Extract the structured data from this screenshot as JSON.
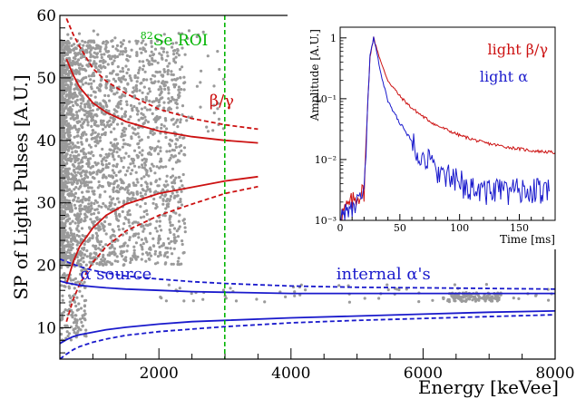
{
  "chart_data": [
    {
      "type": "scatter",
      "xlabel": "Energy [keVee]",
      "ylabel": "SP of Light Pulses [A.U.]",
      "xlim": [
        500,
        8000
      ],
      "ylim": [
        5,
        60
      ],
      "x_ticks": [
        2000,
        4000,
        6000,
        8000
      ],
      "y_ticks": [
        10,
        20,
        30,
        40,
        50,
        60
      ],
      "grid": false,
      "roi": {
        "label_prefix": "82",
        "label": "Se ROI",
        "x": 2997,
        "color": "#00b400"
      },
      "annotations": [
        {
          "text": "β/γ",
          "x": 2950,
          "y": 45.5,
          "color": "#cc1111"
        },
        {
          "text": "α source",
          "x": 1350,
          "y": 17.8,
          "color": "#1a1acc"
        },
        {
          "text": "internal α's",
          "x": 5400,
          "y": 17.8,
          "color": "#1a1acc"
        }
      ],
      "bands": {
        "beta_gamma_color": "#cc1111",
        "alpha_color": "#1a1acc",
        "beta_gamma_x": [
          600,
          700,
          800,
          1000,
          1200,
          1500,
          2000,
          2500,
          3000,
          3500
        ],
        "beta_gamma_upper_solid": [
          53.0,
          50.5,
          48.5,
          46.0,
          44.5,
          43.0,
          41.5,
          40.6,
          40.0,
          39.6
        ],
        "beta_gamma_upper_dashed": [
          59.5,
          57.0,
          55.0,
          51.5,
          49.5,
          47.5,
          45.0,
          43.5,
          42.5,
          41.8
        ],
        "beta_gamma_lower_solid": [
          17.0,
          20.5,
          23.0,
          26.0,
          28.0,
          29.8,
          31.5,
          32.5,
          33.5,
          34.2
        ],
        "beta_gamma_lower_dashed": [
          11.0,
          14.5,
          17.0,
          20.5,
          23.0,
          25.5,
          28.0,
          29.8,
          31.5,
          32.6
        ],
        "alpha_x": [
          500,
          600,
          700,
          800,
          1000,
          1200,
          1500,
          2000,
          2500,
          3000,
          4000,
          5000,
          6000,
          7000,
          8000
        ],
        "alpha_upper_solid": [
          17.5,
          17.2,
          17.0,
          16.8,
          16.6,
          16.4,
          16.2,
          16.0,
          15.8,
          15.7,
          15.5,
          15.5,
          15.5,
          15.5,
          15.5
        ],
        "alpha_upper_dashed": [
          21.0,
          20.6,
          20.2,
          19.8,
          19.2,
          18.8,
          18.3,
          17.8,
          17.4,
          17.1,
          16.7,
          16.5,
          16.4,
          16.3,
          16.2
        ],
        "alpha_lower_solid": [
          7.5,
          8.1,
          8.6,
          8.9,
          9.3,
          9.7,
          10.1,
          10.6,
          11.0,
          11.2,
          11.6,
          11.9,
          12.2,
          12.5,
          12.7
        ],
        "alpha_lower_dashed": [
          5.0,
          5.8,
          6.5,
          7.0,
          7.7,
          8.2,
          8.8,
          9.4,
          9.8,
          10.2,
          10.8,
          11.2,
          11.5,
          11.8,
          12.1
        ]
      },
      "point_color": "#9a9a9a",
      "point_clusters": [
        {
          "x": [
            520,
            2400
          ],
          "y": [
            20,
            56
          ],
          "n": 2600,
          "x_skew": 2.2
        },
        {
          "x": [
            520,
            900
          ],
          "y": [
            8,
            22
          ],
          "n": 160,
          "x_skew": 1.0
        },
        {
          "x": [
            2000,
            8000
          ],
          "y": [
            14,
            17
          ],
          "n": 60,
          "x_skew": 1.0
        },
        {
          "x": [
            6300,
            7200
          ],
          "y": [
            14.2,
            15.6
          ],
          "n": 120,
          "x_skew": 1.0
        },
        {
          "x": [
            600,
            3000
          ],
          "y": [
            41,
            58
          ],
          "n": 90,
          "x_skew": 1.0
        }
      ]
    },
    {
      "type": "line",
      "xlabel": "Time [ms]",
      "ylabel": "Amplitude [A.U.]",
      "xlim": [
        0,
        180
      ],
      "ylim": [
        0.001,
        1.5
      ],
      "yscale": "log",
      "x_ticks": [
        0,
        50,
        100,
        150
      ],
      "y_ticks": [
        "10⁻³",
        "10⁻²",
        "10⁻¹",
        "1"
      ],
      "legend": [
        {
          "text": "light β/γ",
          "color": "#cc1111"
        },
        {
          "text": "light α",
          "color": "#1a1acc"
        }
      ],
      "series": [
        {
          "name": "light β/γ",
          "color": "#cc1111",
          "x": [
            0,
            10,
            15,
            20,
            25,
            28,
            30,
            35,
            40,
            50,
            60,
            70,
            80,
            100,
            120,
            140,
            160,
            180
          ],
          "y": [
            0.0012,
            0.002,
            0.0025,
            0.003,
            0.5,
            1.0,
            0.75,
            0.35,
            0.2,
            0.11,
            0.07,
            0.05,
            0.037,
            0.025,
            0.019,
            0.016,
            0.014,
            0.013
          ]
        },
        {
          "name": "light α",
          "color": "#1a1acc",
          "x": [
            0,
            10,
            15,
            20,
            25,
            28,
            30,
            35,
            40,
            50,
            60,
            70,
            80,
            90,
            100,
            120,
            140,
            160,
            175
          ],
          "y": [
            0.0012,
            0.0015,
            0.002,
            0.0025,
            0.5,
            1.0,
            0.65,
            0.22,
            0.09,
            0.04,
            0.02,
            0.011,
            0.007,
            0.005,
            0.004,
            0.003,
            0.003,
            0.003,
            0.003
          ]
        }
      ]
    }
  ]
}
